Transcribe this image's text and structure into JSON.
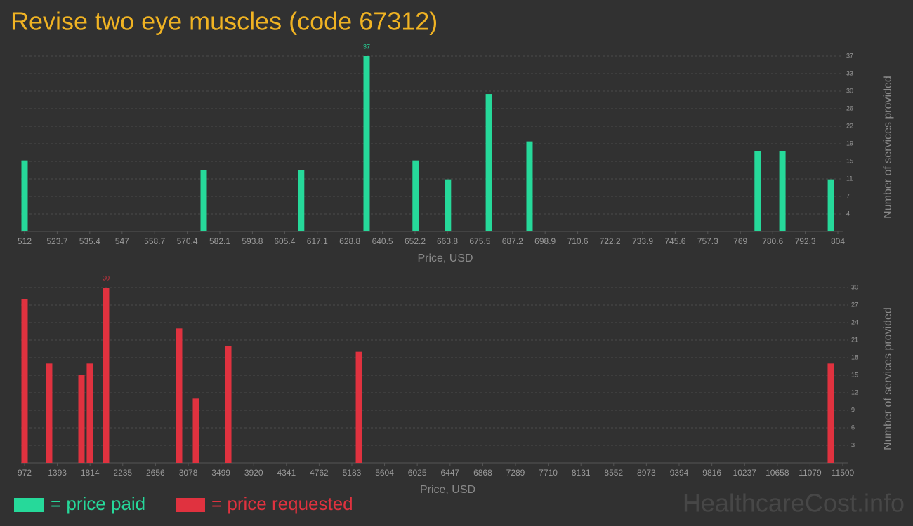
{
  "title": "Revise two eye muscles (code 67312)",
  "watermark": "HealthcareCost.info",
  "chart_data": [
    {
      "type": "bar",
      "xlabel": "Price, USD",
      "ylabel": "Number of services provided",
      "x": [
        512,
        576.3,
        611.3,
        634.8,
        652.4,
        664.0,
        678.7,
        693.3,
        775.2,
        784.1,
        801.5
      ],
      "series": [
        {
          "name": "= price paid",
          "color": "#26d99a",
          "values": [
            15,
            13,
            13,
            37,
            15,
            11,
            29,
            19,
            17,
            17,
            11
          ]
        }
      ],
      "xlim": [
        512,
        804
      ],
      "xticks": [
        512,
        523.7,
        535.4,
        547,
        558.7,
        570.4,
        582.1,
        593.8,
        605.4,
        617.1,
        628.8,
        640.5,
        652.2,
        663.8,
        675.5,
        687.2,
        698.9,
        710.6,
        722.2,
        733.9,
        745.6,
        757.3,
        769,
        780.6,
        792.3,
        804
      ],
      "ylim": [
        0,
        37
      ],
      "yticks": [
        {
          "value": 3.7,
          "label": "4"
        },
        {
          "value": 7.4,
          "label": "7"
        },
        {
          "value": 11.1,
          "label": "11"
        },
        {
          "value": 14.8,
          "label": "15"
        },
        {
          "value": 18.5,
          "label": "19"
        },
        {
          "value": 22.2,
          "label": "22"
        },
        {
          "value": 25.9,
          "label": "26"
        },
        {
          "value": 29.6,
          "label": "30"
        },
        {
          "value": 33.3,
          "label": "33"
        },
        37
      ],
      "grid": true
    },
    {
      "type": "bar",
      "xlabel": "Price, USD",
      "ylabel": "Number of services provided",
      "x": [
        972,
        1288,
        1704,
        1812,
        2020,
        2960,
        3177,
        3593,
        5274,
        11346
      ],
      "series": [
        {
          "name": "= price requested",
          "color": "#e0323f",
          "values": [
            28,
            17,
            15,
            17,
            30,
            23,
            11,
            20,
            19,
            17
          ]
        }
      ],
      "xlim": [
        972,
        11500
      ],
      "xticks": [
        972,
        1393,
        1814,
        2235,
        2656,
        3078,
        3499,
        3920,
        4341,
        4762,
        5183,
        5604,
        6025,
        6447,
        6868,
        7289,
        7710,
        8131,
        8552,
        8973,
        9394,
        9816,
        10237,
        10658,
        11079,
        11500
      ],
      "ylim": [
        0,
        30
      ],
      "yticks": [
        3,
        6,
        9,
        12,
        15,
        18,
        21,
        24,
        27,
        30
      ],
      "grid": true
    }
  ]
}
